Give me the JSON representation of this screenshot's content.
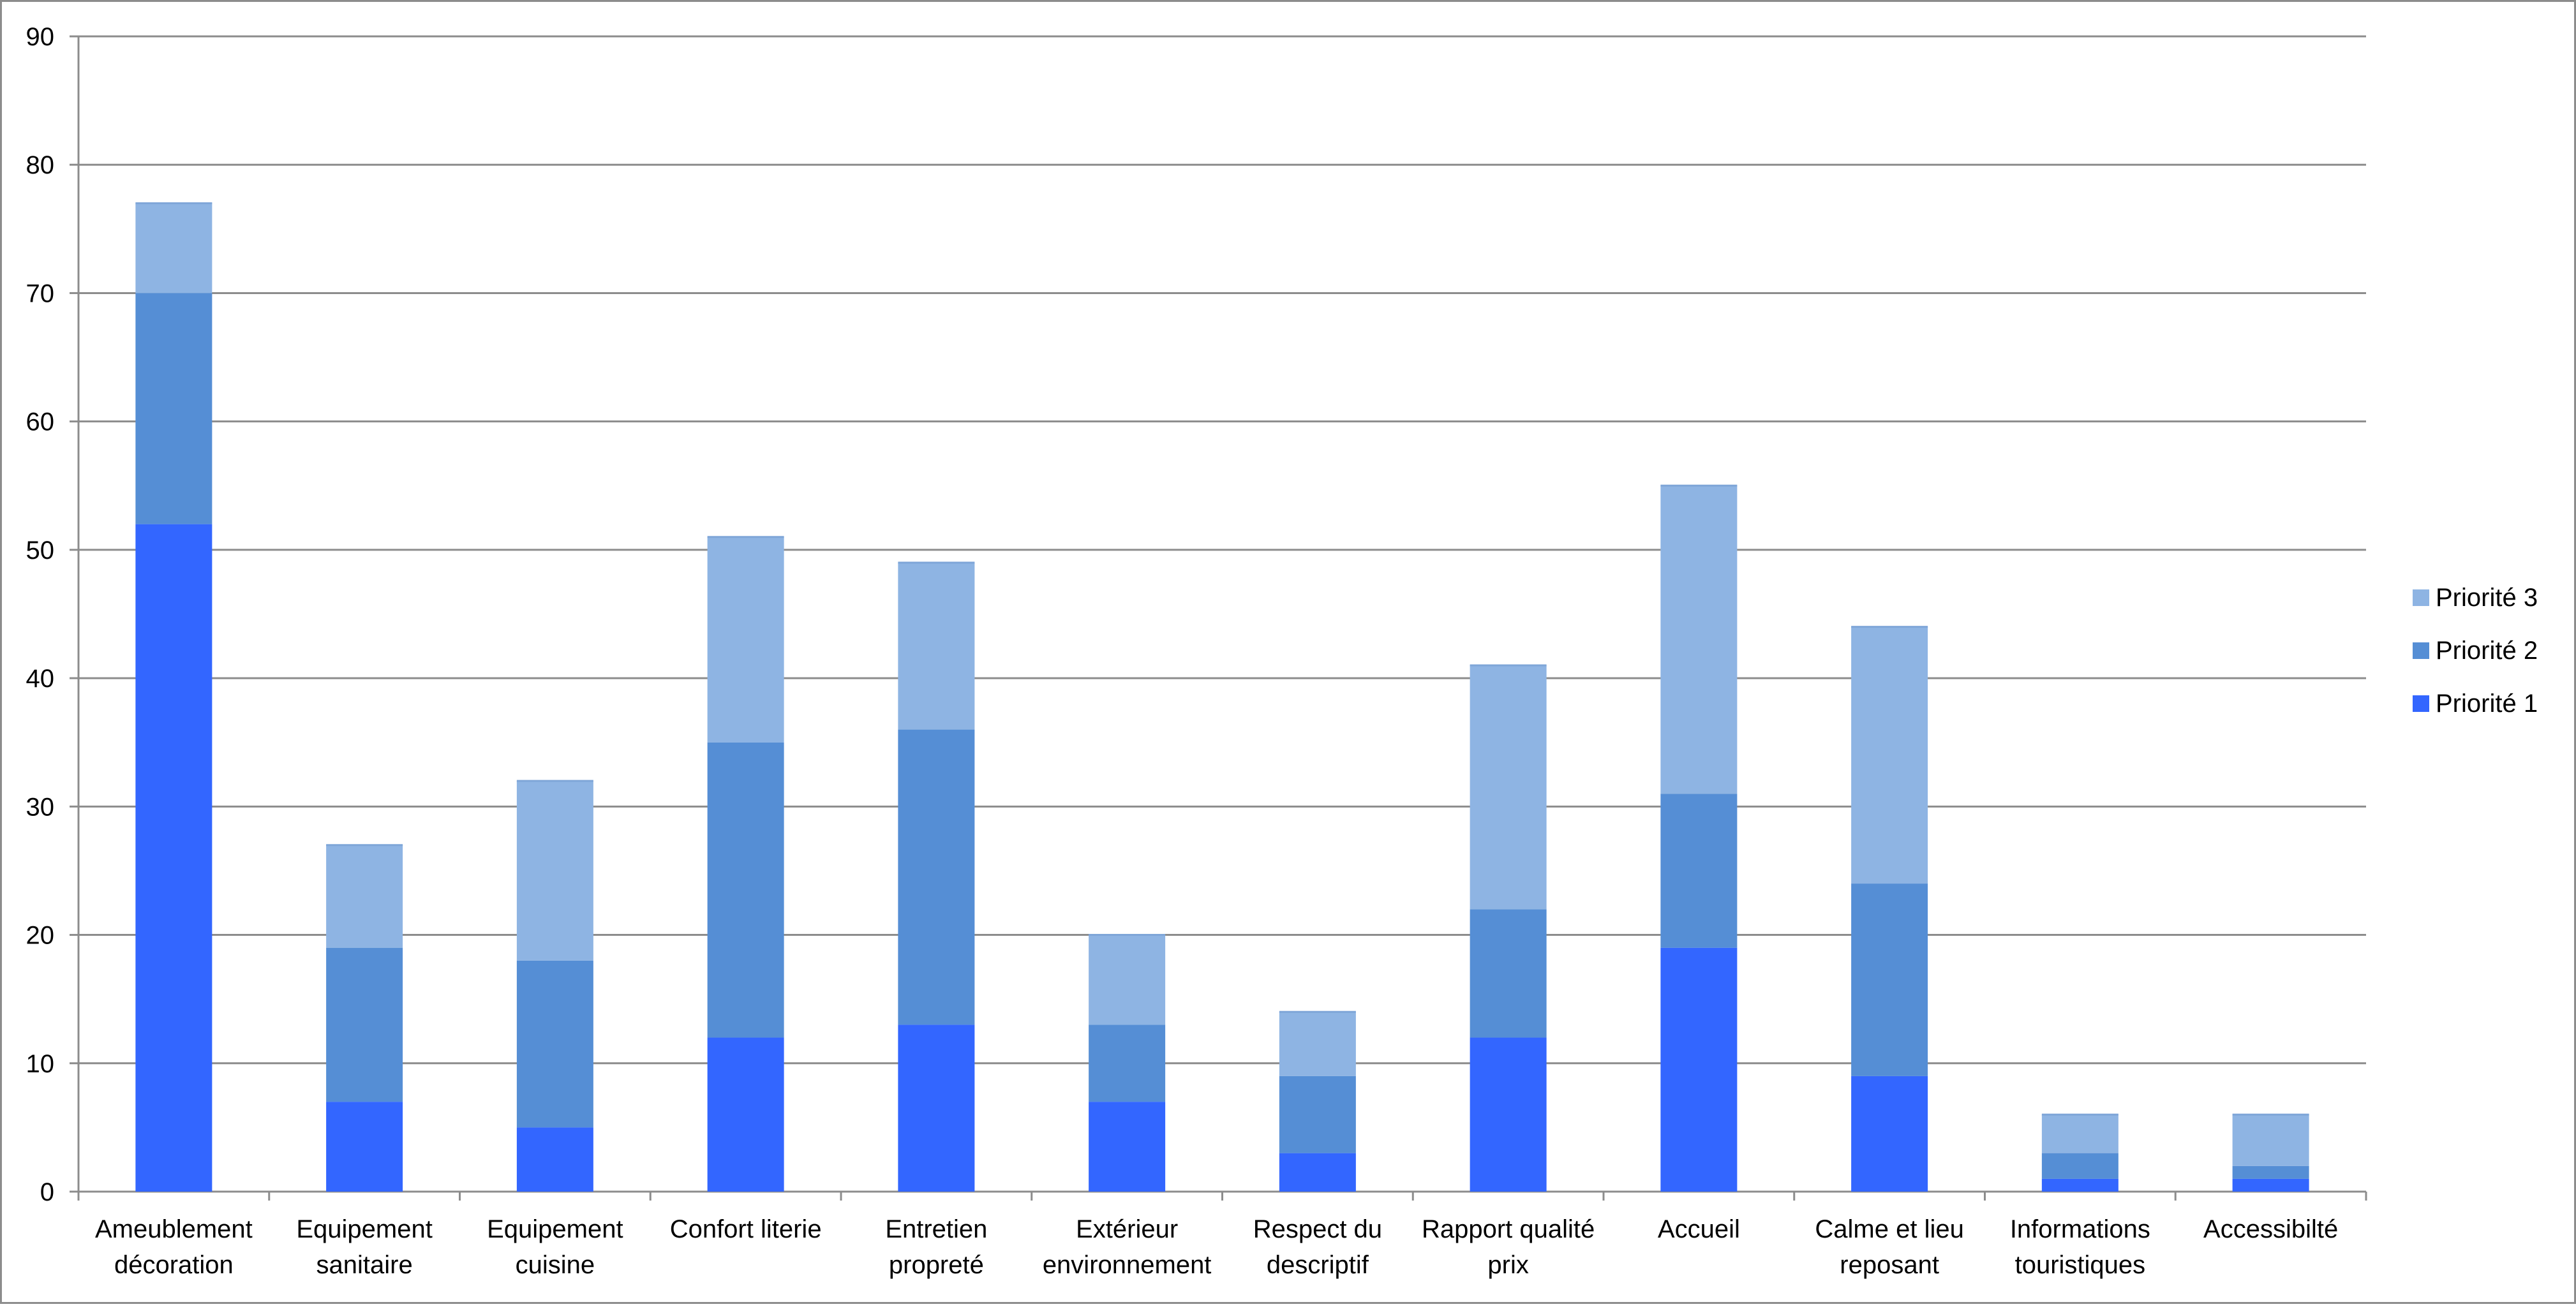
{
  "chart_data": {
    "type": "bar",
    "stacked": true,
    "title": "",
    "xlabel": "",
    "ylabel": "",
    "ylim": [
      0,
      90
    ],
    "yticks": [
      0,
      10,
      20,
      30,
      40,
      50,
      60,
      70,
      80,
      90
    ],
    "grid": true,
    "legend_position": "right",
    "categories": [
      [
        "Ameublement",
        "décoration"
      ],
      [
        "Equipement",
        "sanitaire"
      ],
      [
        "Equipement",
        "cuisine"
      ],
      [
        "Confort literie"
      ],
      [
        "Entretien",
        "propreté"
      ],
      [
        "Extérieur",
        "environnement"
      ],
      [
        "Respect du",
        "descriptif"
      ],
      [
        "Rapport qualité",
        "prix"
      ],
      [
        "Accueil"
      ],
      [
        "Calme et lieu",
        "reposant"
      ],
      [
        "Informations",
        "touristiques"
      ],
      [
        "Accessibilté"
      ]
    ],
    "series": [
      {
        "name": "Priorité 1",
        "color": "#3366ff",
        "values": [
          52,
          7,
          5,
          12,
          13,
          7,
          3,
          12,
          19,
          9,
          1,
          1
        ]
      },
      {
        "name": "Priorité 2",
        "color": "#558ed5",
        "values": [
          18,
          12,
          13,
          23,
          23,
          6,
          6,
          10,
          12,
          15,
          2,
          1
        ]
      },
      {
        "name": "Priorité 3",
        "color": "#8eb4e3",
        "values": [
          7,
          8,
          14,
          16,
          13,
          7,
          5,
          19,
          24,
          20,
          3,
          4
        ]
      }
    ]
  }
}
